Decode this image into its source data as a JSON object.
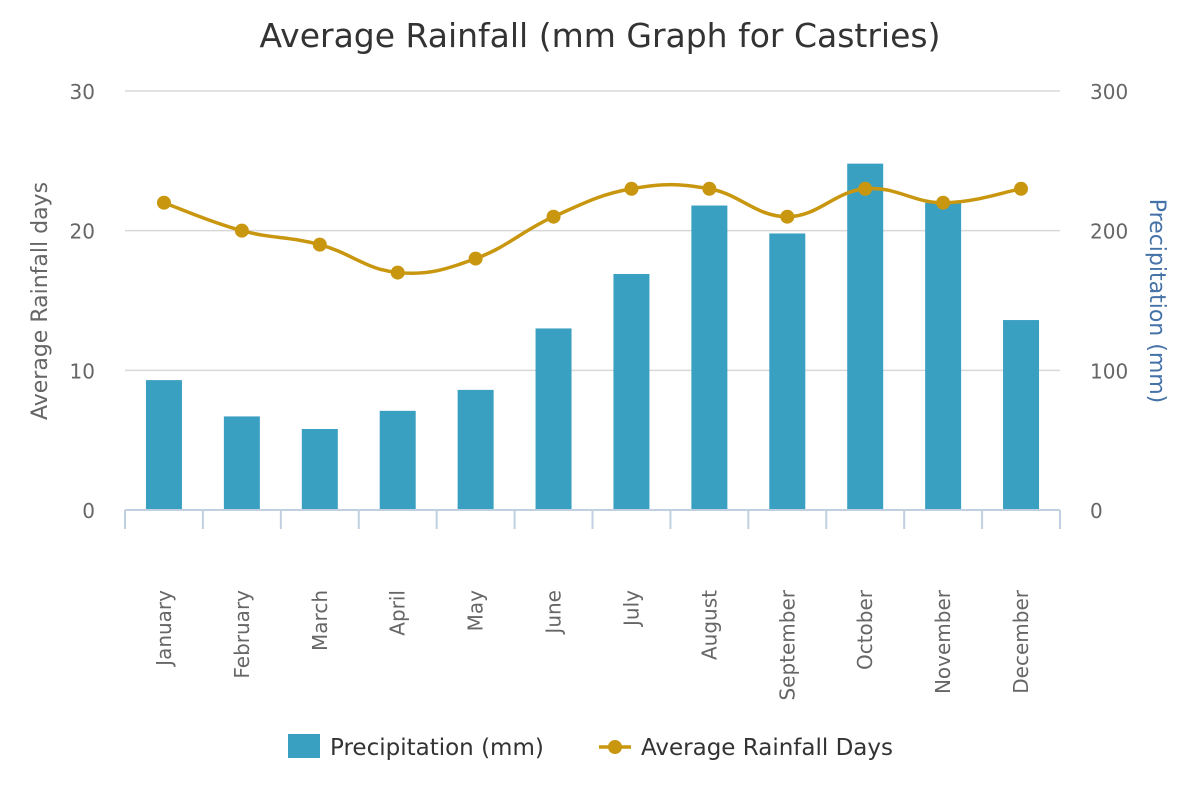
{
  "chart_data": {
    "type": "bar",
    "title": "Average Rainfall (mm Graph for Castries)",
    "categories": [
      "January",
      "February",
      "March",
      "April",
      "May",
      "June",
      "July",
      "August",
      "September",
      "October",
      "November",
      "December"
    ],
    "series": [
      {
        "name": "Precipitation (mm)",
        "type": "bar",
        "axis": "right",
        "color": "#3aa0c2",
        "values": [
          93,
          67,
          58,
          71,
          86,
          130,
          169,
          218,
          198,
          248,
          220,
          136
        ]
      },
      {
        "name": "Average Rainfall Days",
        "type": "line",
        "axis": "left",
        "color": "#c9960f",
        "values": [
          22,
          20,
          19,
          17,
          18,
          21,
          23,
          23,
          21,
          23,
          22,
          23
        ]
      }
    ],
    "y_left": {
      "label": "Average Rainfall days",
      "min": 0,
      "max": 30,
      "ticks": [
        0,
        10,
        20,
        30
      ]
    },
    "y_right": {
      "label": "Precipitation (mm)",
      "min": 0,
      "max": 300,
      "ticks": [
        0,
        100,
        200,
        300
      ]
    },
    "grid": true,
    "legend": "bottom-center",
    "colors": {
      "grid": "#d8d8d8",
      "axis": "#c0d0e0",
      "tick_text": "#666666",
      "left_title": "#666666",
      "right_title": "#4572a7"
    }
  }
}
